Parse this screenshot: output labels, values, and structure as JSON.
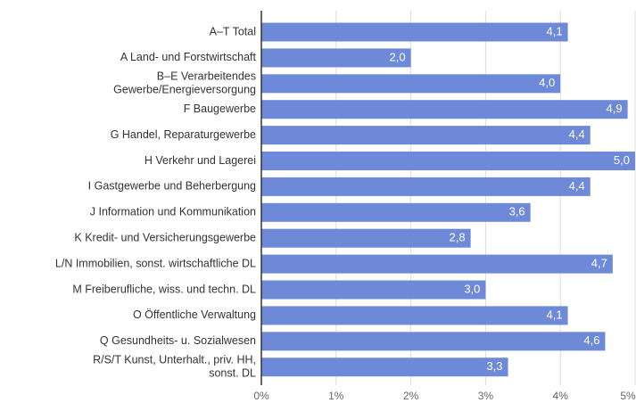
{
  "chart_data": {
    "type": "bar",
    "orientation": "horizontal",
    "categories": [
      "A–T Total",
      "A Land- und Forstwirtschaft",
      [
        "B–E Verarbeitendes",
        "Gewerbe/Energieversorgung"
      ],
      "F Baugewerbe",
      "G Handel, Reparaturgewerbe",
      "H Verkehr und Lagerei",
      "I Gastgewerbe und Beherbergung",
      "J Information und Kommunikation",
      "K Kredit- und Versicherungsgewerbe",
      "L/N Immobilien, sonst. wirtschaftliche DL",
      "M Freiberufliche, wiss. und techn. DL",
      "O Öffentliche Verwaltung",
      "Q Gesundheits- u. Sozialwesen",
      [
        "R/S/T Kunst, Unterhalt., priv. HH,",
        "sonst. DL"
      ]
    ],
    "values": [
      4.1,
      2.0,
      4.0,
      4.9,
      4.4,
      5.0,
      4.4,
      3.6,
      2.8,
      4.7,
      3.0,
      4.1,
      4.6,
      3.3
    ],
    "value_labels": [
      "4,1",
      "2,0",
      "4,0",
      "4,9",
      "4,4",
      "5,0",
      "4,4",
      "3,6",
      "2,8",
      "4,7",
      "3,0",
      "4,1",
      "4,6",
      "3,3"
    ],
    "color": "#6f89d9",
    "xlim": [
      0,
      5
    ],
    "xticks": [
      {
        "value": 0,
        "label": "0%"
      },
      {
        "value": 1,
        "label": "1%"
      },
      {
        "value": 2,
        "label": "2%"
      },
      {
        "value": 3,
        "label": "3%"
      },
      {
        "value": 4,
        "label": "4%"
      },
      {
        "value": 5,
        "label": "5%"
      }
    ],
    "grid": true
  }
}
